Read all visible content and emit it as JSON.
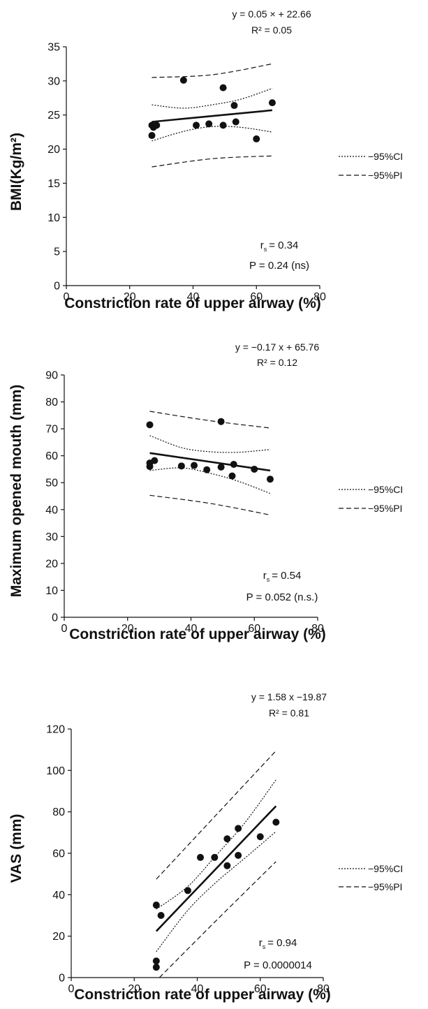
{
  "chart_data": [
    {
      "type": "scatter",
      "ylabel": "BMI(Kg/m²)",
      "xlabel": "Constriction rate of upper airway (%)",
      "xlim": [
        0,
        80
      ],
      "ylim": [
        0,
        35
      ],
      "xticks": [
        "0",
        "20",
        "40",
        "60",
        "80"
      ],
      "yticks": [
        "0",
        "5",
        "10",
        "15",
        "20",
        "25",
        "30",
        "35"
      ],
      "equation": "y = 0.05 × + 22.66",
      "r2": "R² = 0.05",
      "rs_label": "r",
      "rs_sub": "s",
      "rs_value": "= 0.34",
      "p_value": "P = 0.24 (ns)",
      "legend": [
        "−95%CI",
        "−95%PI"
      ],
      "points": [
        {
          "x": 27.0,
          "y": 23.5
        },
        {
          "x": 27.0,
          "y": 22.0
        },
        {
          "x": 27.5,
          "y": 23.2
        },
        {
          "x": 28.5,
          "y": 23.5
        },
        {
          "x": 37.0,
          "y": 30.1
        },
        {
          "x": 41.0,
          "y": 23.5
        },
        {
          "x": 45.0,
          "y": 23.7
        },
        {
          "x": 49.5,
          "y": 29.0
        },
        {
          "x": 49.5,
          "y": 23.5
        },
        {
          "x": 53.0,
          "y": 26.4
        },
        {
          "x": 53.5,
          "y": 24.0
        },
        {
          "x": 60.0,
          "y": 21.5
        },
        {
          "x": 65.0,
          "y": 26.8
        }
      ],
      "fit": [
        [
          27,
          24.0
        ],
        [
          65,
          25.7
        ]
      ],
      "ci_upper": [
        [
          27,
          26.5
        ],
        [
          37,
          26.0
        ],
        [
          46,
          26.5
        ],
        [
          55,
          27.3
        ],
        [
          65,
          28.9
        ]
      ],
      "ci_lower": [
        [
          27,
          21.2
        ],
        [
          37,
          22.6
        ],
        [
          46,
          23.3
        ],
        [
          55,
          23.2
        ],
        [
          65,
          22.5
        ]
      ],
      "pi_upper": [
        [
          27,
          30.5
        ],
        [
          46,
          30.9
        ],
        [
          65,
          32.5
        ]
      ],
      "pi_lower": [
        [
          27,
          17.4
        ],
        [
          46,
          18.6
        ],
        [
          65,
          19.0
        ]
      ]
    },
    {
      "type": "scatter",
      "ylabel": "Maximum opened mouth (mm)",
      "xlabel": "Constriction rate of upper airway (%)",
      "xlim": [
        0,
        80
      ],
      "ylim": [
        0,
        90
      ],
      "xticks": [
        "0",
        "20",
        "40",
        "60",
        "80"
      ],
      "yticks": [
        "0",
        "10",
        "20",
        "30",
        "40",
        "50",
        "60",
        "70",
        "80",
        "90"
      ],
      "equation": "y = −0.17 x + 65.76",
      "r2": "R² = 0.12",
      "rs_label": "r",
      "rs_sub": "s",
      "rs_value": "= 0.54",
      "p_value": "P = 0.052 (n.s.)",
      "legend": [
        "−95%CI",
        "−95%PI"
      ],
      "points": [
        {
          "x": 27.0,
          "y": 71.5
        },
        {
          "x": 27.0,
          "y": 57.3
        },
        {
          "x": 27.0,
          "y": 56.0
        },
        {
          "x": 28.5,
          "y": 58.2
        },
        {
          "x": 37.0,
          "y": 56.2
        },
        {
          "x": 41.0,
          "y": 56.4
        },
        {
          "x": 45.0,
          "y": 54.8
        },
        {
          "x": 49.5,
          "y": 72.7
        },
        {
          "x": 49.5,
          "y": 55.8
        },
        {
          "x": 53.0,
          "y": 52.5
        },
        {
          "x": 53.5,
          "y": 56.8
        },
        {
          "x": 60.0,
          "y": 55.0
        },
        {
          "x": 65.0,
          "y": 51.3
        }
      ],
      "fit": [
        [
          27,
          61.0
        ],
        [
          65,
          54.5
        ]
      ],
      "ci_upper": [
        [
          27,
          67.5
        ],
        [
          37,
          63.0
        ],
        [
          46,
          61.5
        ],
        [
          55,
          61.3
        ],
        [
          65,
          62.3
        ]
      ],
      "ci_lower": [
        [
          27,
          54.5
        ],
        [
          37,
          55.5
        ],
        [
          46,
          53.5
        ],
        [
          55,
          50.5
        ],
        [
          65,
          46.0
        ]
      ],
      "pi_upper": [
        [
          27,
          76.5
        ],
        [
          46,
          73.0
        ],
        [
          65,
          70.3
        ]
      ],
      "pi_lower": [
        [
          27,
          45.3
        ],
        [
          46,
          42.3
        ],
        [
          65,
          38.0
        ]
      ]
    },
    {
      "type": "scatter",
      "ylabel": "VAS (mm)",
      "xlabel": "Constriction rate of upper airway (%)",
      "xlim": [
        0,
        80
      ],
      "ylim": [
        0,
        120
      ],
      "xticks": [
        "0",
        "20",
        "40",
        "60",
        "80"
      ],
      "yticks": [
        "0",
        "20",
        "40",
        "60",
        "80",
        "100",
        "120"
      ],
      "equation": "y = 1.58 x −19.87",
      "r2": "R² = 0.81",
      "rs_label": "r",
      "rs_sub": "s",
      "rs_value": "= 0.94",
      "p_value": "P = 0.0000014",
      "legend": [
        "−95%CI",
        "−95%PI"
      ],
      "points": [
        {
          "x": 27.0,
          "y": 35.0
        },
        {
          "x": 27.0,
          "y": 8.0
        },
        {
          "x": 27.0,
          "y": 5.0
        },
        {
          "x": 28.5,
          "y": 30.0
        },
        {
          "x": 37.0,
          "y": 42.0
        },
        {
          "x": 41.0,
          "y": 58.0
        },
        {
          "x": 45.5,
          "y": 58.0
        },
        {
          "x": 49.5,
          "y": 67.0
        },
        {
          "x": 49.5,
          "y": 54.0
        },
        {
          "x": 53.0,
          "y": 72.0
        },
        {
          "x": 53.0,
          "y": 59.0
        },
        {
          "x": 60.0,
          "y": 68.0
        },
        {
          "x": 65.0,
          "y": 75.0
        }
      ],
      "fit": [
        [
          27,
          22.4
        ],
        [
          65,
          82.8
        ]
      ],
      "ci_upper": [
        [
          27,
          33.0
        ],
        [
          37,
          44.0
        ],
        [
          46,
          59.0
        ],
        [
          55,
          74.5
        ],
        [
          65,
          95.5
        ]
      ],
      "ci_lower": [
        [
          27,
          12.5
        ],
        [
          37,
          32.5
        ],
        [
          46,
          46.0
        ],
        [
          55,
          57.5
        ],
        [
          65,
          70.5
        ]
      ],
      "pi_upper": [
        [
          27,
          47.5
        ],
        [
          46,
          78.5
        ],
        [
          65,
          109.5
        ]
      ],
      "pi_lower": [
        [
          28,
          0.0
        ],
        [
          46,
          27.5
        ],
        [
          65,
          56.0
        ]
      ]
    }
  ]
}
